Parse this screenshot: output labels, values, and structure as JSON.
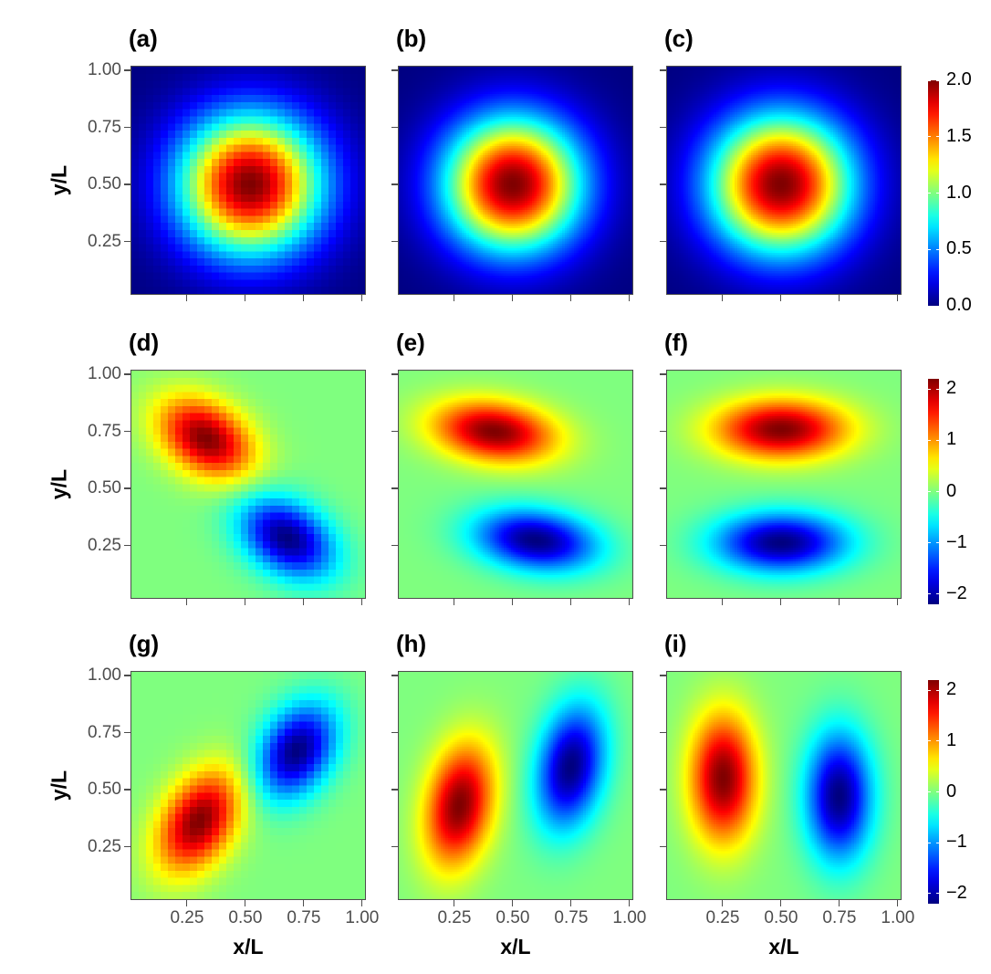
{
  "axes": {
    "xlabel": "x/L",
    "ylabel": "y/L",
    "xlim": [
      0.008,
      1.016
    ],
    "ylim": [
      0.016,
      1.02
    ],
    "xticks": [
      "0.25",
      "0.50",
      "0.75",
      "1.00"
    ],
    "yticks": [
      "0.25",
      "0.50",
      "0.75",
      "1.00"
    ]
  },
  "colormap": [
    "#00007F",
    "#0000FF",
    "#007FFF",
    "#00FFFF",
    "#7FFF7F",
    "#FFFF00",
    "#FF7F00",
    "#FF0000",
    "#7F0000"
  ],
  "colorbars": [
    {
      "range": [
        0,
        2
      ],
      "ticks": [
        "0.0",
        "0.5",
        "1.0",
        "1.5",
        "2.0"
      ],
      "tick_values": [
        0,
        0.5,
        1,
        1.5,
        2
      ]
    },
    {
      "range": [
        -2.2,
        2.2
      ],
      "ticks": [
        "−2",
        "−1",
        "0",
        "1",
        "2"
      ],
      "tick_values": [
        -2,
        -1,
        0,
        1,
        2
      ]
    },
    {
      "range": [
        -2.2,
        2.2
      ],
      "ticks": [
        "−2",
        "−1",
        "0",
        "1",
        "2"
      ],
      "tick_values": [
        -2,
        -1,
        0,
        1,
        2
      ]
    }
  ],
  "chart_data": [
    {
      "label": "(a)",
      "type": "heatmap",
      "cells_per_side": 32,
      "peaks": [
        {
          "x": 0.52,
          "y": 0.5,
          "value": 2.0,
          "sx": 0.3,
          "sy": 0.3,
          "angle": 0
        }
      ]
    },
    {
      "label": "(b)",
      "type": "heatmap",
      "cells_per_side": 100,
      "peaks": [
        {
          "x": 0.5,
          "y": 0.5,
          "value": 2.0,
          "sx": 0.29,
          "sy": 0.29,
          "angle": 0
        }
      ]
    },
    {
      "label": "(c)",
      "type": "heatmap",
      "cells_per_side": 100,
      "peaks": [
        {
          "x": 0.5,
          "y": 0.5,
          "value": 2.0,
          "sx": 0.3,
          "sy": 0.3,
          "angle": 0
        }
      ]
    },
    {
      "label": "(d)",
      "type": "heatmap",
      "cells_per_side": 32,
      "peaks": [
        {
          "x": 0.33,
          "y": 0.72,
          "value": 2.2,
          "sx": 0.22,
          "sy": 0.15,
          "angle": -35
        },
        {
          "x": 0.68,
          "y": 0.28,
          "value": -2.2,
          "sx": 0.22,
          "sy": 0.15,
          "angle": -35
        }
      ]
    },
    {
      "label": "(e)",
      "type": "heatmap",
      "cells_per_side": 100,
      "peaks": [
        {
          "x": 0.42,
          "y": 0.75,
          "value": 2.2,
          "sx": 0.26,
          "sy": 0.13,
          "angle": -8
        },
        {
          "x": 0.6,
          "y": 0.27,
          "value": -2.2,
          "sx": 0.26,
          "sy": 0.13,
          "angle": -8
        }
      ]
    },
    {
      "label": "(f)",
      "type": "heatmap",
      "cells_per_side": 100,
      "peaks": [
        {
          "x": 0.5,
          "y": 0.76,
          "value": 2.2,
          "sx": 0.28,
          "sy": 0.13,
          "angle": 0
        },
        {
          "x": 0.5,
          "y": 0.26,
          "value": -2.2,
          "sx": 0.28,
          "sy": 0.13,
          "angle": 0
        }
      ]
    },
    {
      "label": "(g)",
      "type": "heatmap",
      "cells_per_side": 32,
      "peaks": [
        {
          "x": 0.3,
          "y": 0.36,
          "value": 2.2,
          "sx": 0.15,
          "sy": 0.24,
          "angle": -30
        },
        {
          "x": 0.72,
          "y": 0.67,
          "value": -2.2,
          "sx": 0.15,
          "sy": 0.22,
          "angle": -30
        }
      ]
    },
    {
      "label": "(h)",
      "type": "heatmap",
      "cells_per_side": 100,
      "peaks": [
        {
          "x": 0.27,
          "y": 0.43,
          "value": 2.2,
          "sx": 0.14,
          "sy": 0.27,
          "angle": -10
        },
        {
          "x": 0.75,
          "y": 0.6,
          "value": -2.2,
          "sx": 0.14,
          "sy": 0.27,
          "angle": -10
        }
      ]
    },
    {
      "label": "(i)",
      "type": "heatmap",
      "cells_per_side": 100,
      "peaks": [
        {
          "x": 0.25,
          "y": 0.55,
          "value": 2.2,
          "sx": 0.14,
          "sy": 0.28,
          "angle": 0
        },
        {
          "x": 0.75,
          "y": 0.47,
          "value": -2.2,
          "sx": 0.14,
          "sy": 0.28,
          "angle": 0
        }
      ]
    }
  ]
}
